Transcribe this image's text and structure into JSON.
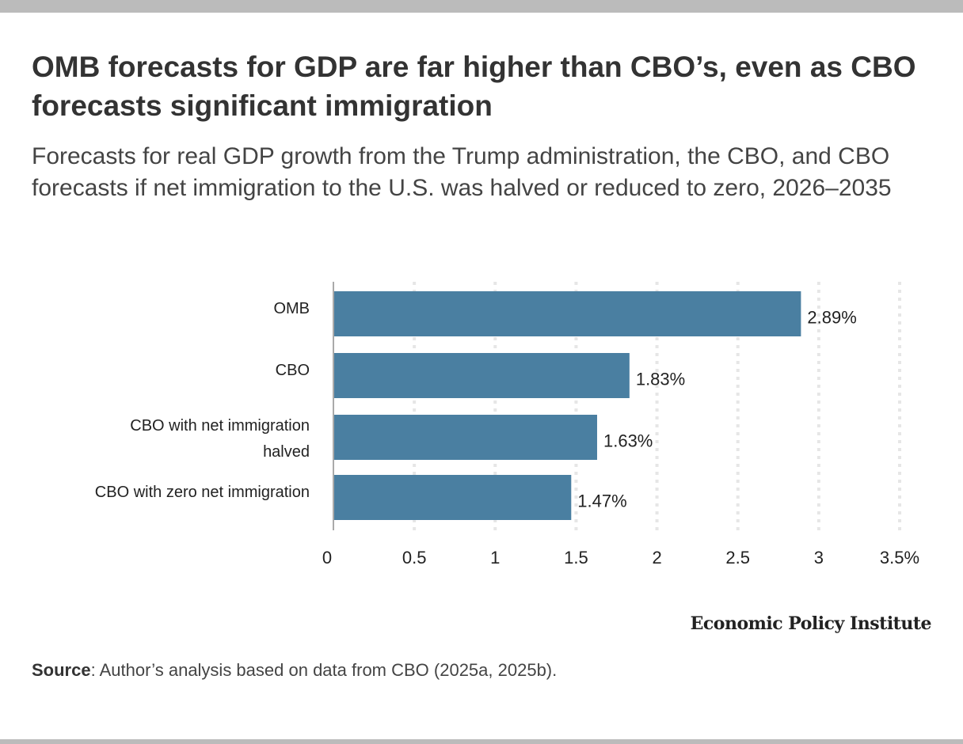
{
  "title": "OMB forecasts for GDP are far higher than CBO’s, even as CBO forecasts significant immigration",
  "subtitle": "Forecasts for real GDP growth from the Trump administration, the CBO, and CBO forecasts if net immigration to the U.S. was halved or reduced to zero, 2026–2035",
  "brand": "Economic Policy Institute",
  "source": {
    "label": "Source",
    "text": ": Author’s analysis based on data from CBO (2025a, 2025b)."
  },
  "colors": {
    "bar": "#4a7fa1",
    "grid": "#e6e6e6",
    "axis": "#aaaaaa"
  },
  "chart_data": {
    "type": "bar",
    "orientation": "horizontal",
    "categories": [
      [
        "OMB"
      ],
      [
        "CBO"
      ],
      [
        "CBO with net immigration",
        "halved"
      ],
      [
        "CBO with zero net immigration"
      ]
    ],
    "values": [
      2.89,
      1.83,
      1.63,
      1.47
    ],
    "data_labels": [
      "2.89%",
      "1.83%",
      "1.63%",
      "1.47%"
    ],
    "xlim": [
      0,
      3.5
    ],
    "xticks": [
      0,
      0.5,
      1,
      1.5,
      2,
      2.5,
      3,
      3.5
    ],
    "xtick_labels": [
      "0",
      "0.5",
      "1",
      "1.5",
      "2",
      "2.5",
      "3",
      "3.5%"
    ],
    "xlabel": "",
    "ylabel": "",
    "grid": "vertical dotted",
    "legend": "none"
  }
}
